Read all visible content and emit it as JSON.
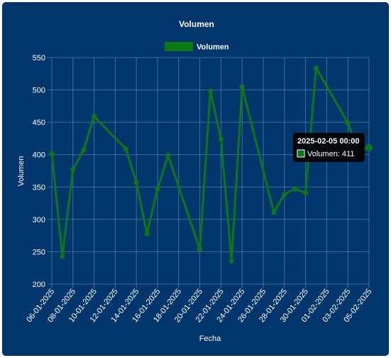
{
  "colors": {
    "background": "#00366c",
    "series": "#0a7a16",
    "text": "#ffffff"
  },
  "chart_data": {
    "type": "line",
    "title": "Volumen",
    "xlabel": "Fecha",
    "ylabel": "Volumen",
    "ylim": [
      200,
      550
    ],
    "yticks": [
      200,
      250,
      300,
      350,
      400,
      450,
      500,
      550
    ],
    "grid": true,
    "legend_position": "top",
    "xtick_labels": [
      "06-01-2025",
      "08-01-2025",
      "10-01-2025",
      "12-01-2025",
      "14-01-2025",
      "16-01-2025",
      "18-01-2025",
      "20-01-2025",
      "22-01-2025",
      "24-01-2025",
      "26-01-2025",
      "28-01-2025",
      "30-01-2025",
      "01-02-2025",
      "03-02-2025",
      "05-02-2025"
    ],
    "series": [
      {
        "name": "Volumen",
        "points": [
          {
            "x": "2025-01-06",
            "y": 402
          },
          {
            "x": "2025-01-07",
            "y": 243
          },
          {
            "x": "2025-01-08",
            "y": 377
          },
          {
            "x": "2025-01-09",
            "y": 407
          },
          {
            "x": "2025-01-10",
            "y": 459
          },
          {
            "x": "2025-01-13",
            "y": 409
          },
          {
            "x": "2025-01-14",
            "y": 357
          },
          {
            "x": "2025-01-15",
            "y": 278
          },
          {
            "x": "2025-01-16",
            "y": 347
          },
          {
            "x": "2025-01-17",
            "y": 399
          },
          {
            "x": "2025-01-20",
            "y": 254
          },
          {
            "x": "2025-01-21",
            "y": 498
          },
          {
            "x": "2025-01-22",
            "y": 424
          },
          {
            "x": "2025-01-23",
            "y": 236
          },
          {
            "x": "2025-01-24",
            "y": 505
          },
          {
            "x": "2025-01-27",
            "y": 311
          },
          {
            "x": "2025-01-28",
            "y": 339
          },
          {
            "x": "2025-01-29",
            "y": 347
          },
          {
            "x": "2025-01-30",
            "y": 341
          },
          {
            "x": "2025-01-31",
            "y": 534
          },
          {
            "x": "2025-02-03",
            "y": 449
          },
          {
            "x": "2025-02-04",
            "y": 405
          },
          {
            "x": "2025-02-05",
            "y": 411
          }
        ]
      }
    ],
    "tooltip": {
      "title": "2025-02-05 00:00",
      "label": "Volumen: 411"
    }
  }
}
